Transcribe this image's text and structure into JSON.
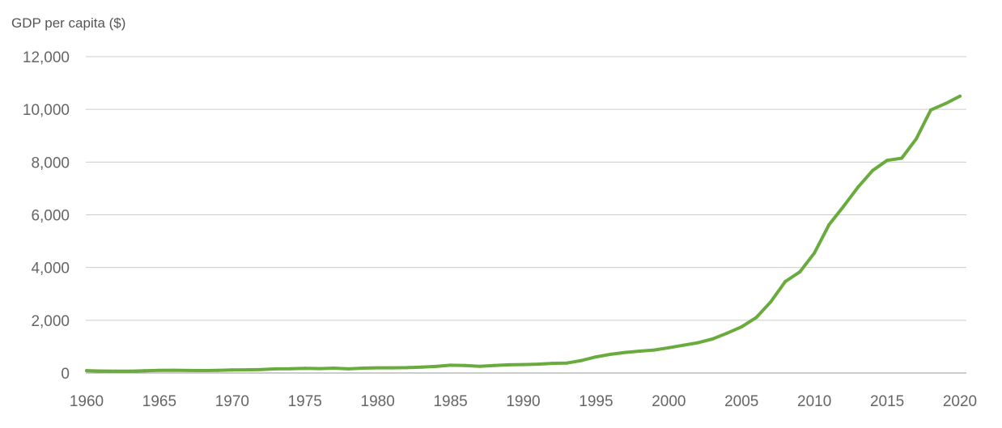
{
  "chart_data": {
    "type": "line",
    "title": "",
    "ylabel": "GDP per capita ($)",
    "xlabel": "",
    "xlim": [
      1960,
      2020
    ],
    "ylim": [
      0,
      12000
    ],
    "x_ticks": [
      "1960",
      "1965",
      "1970",
      "1975",
      "1980",
      "1985",
      "1990",
      "1995",
      "2000",
      "2005",
      "2010",
      "2015",
      "2020"
    ],
    "y_ticks": [
      "0",
      "2,000",
      "4,000",
      "6,000",
      "8,000",
      "10,000",
      "12,000"
    ],
    "grid": "horizontal",
    "legend": "none",
    "series_color": "#6aab3e",
    "series": [
      {
        "x": [
          1960,
          1961,
          1962,
          1963,
          1964,
          1965,
          1966,
          1967,
          1968,
          1969,
          1970,
          1971,
          1972,
          1973,
          1974,
          1975,
          1976,
          1977,
          1978,
          1979,
          1980,
          1981,
          1982,
          1983,
          1984,
          1985,
          1986,
          1987,
          1988,
          1989,
          1990,
          1991,
          1992,
          1993,
          1994,
          1995,
          1996,
          1997,
          1998,
          1999,
          2000,
          2001,
          2002,
          2003,
          2004,
          2005,
          2006,
          2007,
          2008,
          2009,
          2010,
          2011,
          2012,
          2013,
          2014,
          2015,
          2016,
          2017,
          2018,
          2019,
          2020
        ],
        "values": [
          90,
          75,
          70,
          72,
          85,
          98,
          104,
          96,
          91,
          100,
          113,
          119,
          132,
          157,
          160,
          178,
          165,
          185,
          156,
          183,
          195,
          197,
          203,
          225,
          250,
          294,
          281,
          252,
          283,
          311,
          318,
          333,
          366,
          377,
          474,
          610,
          709,
          781,
          828,
          873,
          959,
          1053,
          1149,
          1289,
          1509,
          1753,
          2099,
          2694,
          3468,
          3832,
          4550,
          5618,
          6317,
          7051,
          7679,
          8067,
          8148,
          8879,
          9977,
          10217,
          10500
        ]
      }
    ]
  }
}
